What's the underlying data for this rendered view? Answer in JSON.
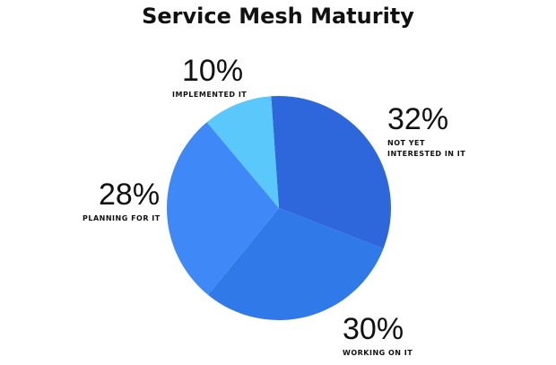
{
  "chart_data": {
    "type": "pie",
    "title": "Service Mesh Maturity",
    "slices": [
      {
        "label": "NOT YET INTERESTED IN IT",
        "value": 32,
        "display": "32%",
        "color": "#2e66dc"
      },
      {
        "label": "WORKING ON IT",
        "value": 30,
        "display": "30%",
        "color": "#2f7ae8"
      },
      {
        "label": "PLANNING FOR IT",
        "value": 28,
        "display": "28%",
        "color": "#3f88f7"
      },
      {
        "label": "IMPLEMENTED IT",
        "value": 10,
        "display": "10%",
        "color": "#5ac8fb"
      }
    ]
  }
}
